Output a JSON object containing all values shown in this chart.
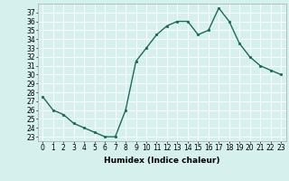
{
  "x": [
    0,
    1,
    2,
    3,
    4,
    5,
    6,
    7,
    8,
    9,
    10,
    11,
    12,
    13,
    14,
    15,
    16,
    17,
    18,
    19,
    20,
    21,
    22,
    23
  ],
  "y": [
    27.5,
    26.0,
    25.5,
    24.5,
    24.0,
    23.5,
    23.0,
    23.0,
    26.0,
    31.5,
    33.0,
    34.5,
    35.5,
    36.0,
    36.0,
    34.5,
    35.0,
    37.5,
    36.0,
    33.5,
    32.0,
    31.0,
    30.5,
    30.0
  ],
  "line_color": "#1a6b5a",
  "marker": "o",
  "markersize": 1.8,
  "linewidth": 1.0,
  "xlabel": "Humidex (Indice chaleur)",
  "xlabel_fontsize": 6.5,
  "xlabel_weight": "bold",
  "ylim": [
    22.5,
    38.0
  ],
  "xlim": [
    -0.5,
    23.5
  ],
  "yticks": [
    23,
    24,
    25,
    26,
    27,
    28,
    29,
    30,
    31,
    32,
    33,
    34,
    35,
    36,
    37
  ],
  "xticks": [
    0,
    1,
    2,
    3,
    4,
    5,
    6,
    7,
    8,
    9,
    10,
    11,
    12,
    13,
    14,
    15,
    16,
    17,
    18,
    19,
    20,
    21,
    22,
    23
  ],
  "bg_color": "#d6f0ee",
  "grid_color": "#ffffff",
  "tick_fontsize": 5.5,
  "fig_width": 3.2,
  "fig_height": 2.0,
  "dpi": 100
}
